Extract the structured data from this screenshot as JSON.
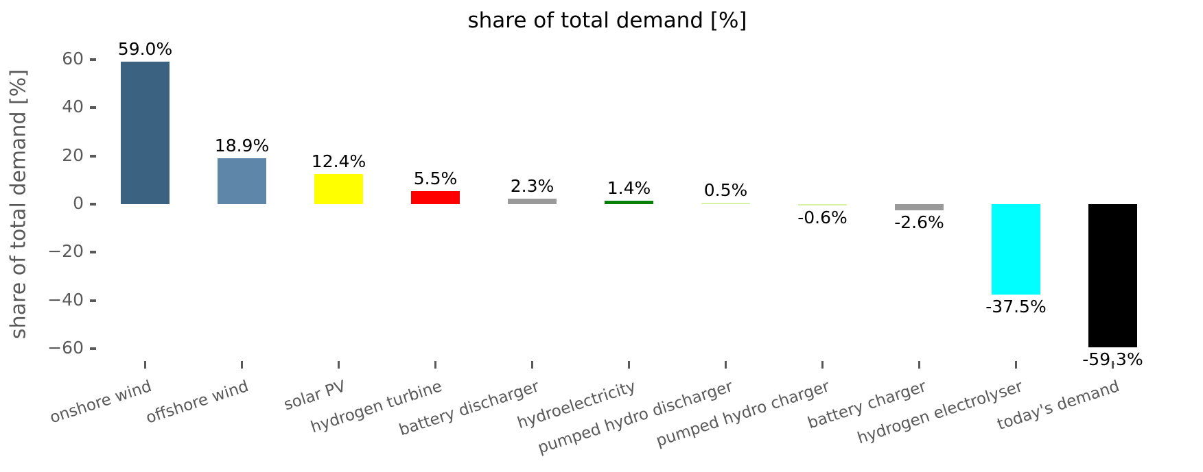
{
  "chart_data": {
    "type": "bar",
    "title": "share of total demand [%]",
    "xlabel": "",
    "ylabel": "share of total demand [%]",
    "categories": [
      "onshore wind",
      "offshore wind",
      "solar PV",
      "hydrogen turbine",
      "battery discharger",
      "hydroelectricity",
      "pumped hydro discharger",
      "pumped hydro charger",
      "battery charger",
      "hydrogen electrolyser",
      "today's demand"
    ],
    "values": [
      59.0,
      18.9,
      12.4,
      5.5,
      2.3,
      1.4,
      0.5,
      -0.6,
      -2.6,
      -37.5,
      -59.3
    ],
    "value_labels": [
      "59.0%",
      "18.9%",
      "12.4%",
      "5.5%",
      "2.3%",
      "1.4%",
      "0.5%",
      "-0.6%",
      "-2.6%",
      "-37.5%",
      "-59.3%"
    ],
    "bar_colors": [
      "#3b6280",
      "#5d86a9",
      "#ffff00",
      "#ff0000",
      "#9a9a9a",
      "#088008",
      "#d7f1a7",
      "#d7f1a7",
      "#9a9a9a",
      "#00ffff",
      "#000000"
    ],
    "yticks": [
      60,
      40,
      20,
      0,
      -20,
      -40,
      -60
    ],
    "ytick_labels": [
      "60",
      "40",
      "20",
      "0",
      "−20",
      "−40",
      "−60"
    ],
    "ylim": [
      -64.5,
      64.5
    ],
    "grid": false,
    "legend": null,
    "x_label_rotation_deg": 18,
    "axis_text_color": "#595959",
    "value_label_color": "#000000",
    "background_color": "#ffffff"
  }
}
